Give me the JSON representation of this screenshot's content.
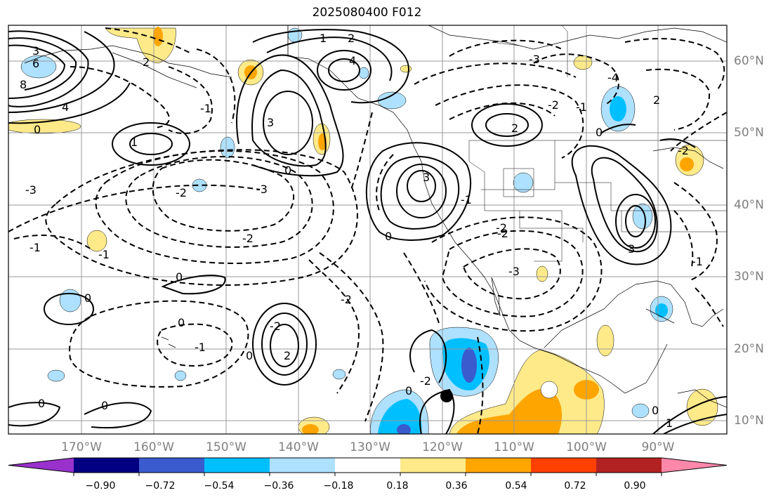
{
  "title": "2025080400 F012",
  "map": {
    "projection": "plate-carree",
    "lon_range": [
      -178,
      -78
    ],
    "lat_range": [
      7,
      64
    ],
    "marker": {
      "name": "black-dot",
      "lon": -119,
      "lat": 13.5
    },
    "contour_style": {
      "positive": "solid",
      "negative": "dashed",
      "color": "#000000"
    },
    "contour_labels": [
      "3",
      "6",
      "8",
      "4",
      "2",
      "1",
      "0",
      "-1",
      "-2",
      "-3",
      "1",
      "2",
      "4",
      "-2",
      "-3",
      "-4",
      "0",
      "2",
      "-1",
      "3",
      "0",
      "-2",
      "3",
      "-1",
      "-2",
      "-3",
      "0",
      "2",
      "-1",
      "-3",
      "-2",
      "0",
      "0",
      "-2",
      "0",
      "-1",
      "2",
      "-2",
      "-1",
      "3",
      "0",
      "0",
      "0",
      "-1",
      "0",
      "1",
      "-2",
      "0",
      "-2"
    ]
  },
  "lat_labels": [
    "60°N",
    "50°N",
    "40°N",
    "30°N",
    "20°N",
    "10°N"
  ],
  "lon_labels": [
    "170°W",
    "160°W",
    "150°W",
    "140°W",
    "130°W",
    "120°W",
    "110°W",
    "100°W",
    "90°W"
  ],
  "colorbar": {
    "bounds": [
      -1.08,
      -0.9,
      -0.72,
      -0.54,
      -0.36,
      -0.18,
      0.18,
      0.36,
      0.54,
      0.72,
      0.9,
      1.08
    ],
    "tick_labels": [
      "−0.90",
      "−0.72",
      "−0.54",
      "−0.36",
      "−0.18",
      "0.18",
      "0.36",
      "0.54",
      "0.72",
      "0.90"
    ],
    "colors": [
      "#9932cc",
      "#000080",
      "#3a5bcd",
      "#00bfff",
      "#aee1ff",
      "#ffffff",
      "#ffea8a",
      "#ffa500",
      "#ff4000",
      "#b22222",
      "#ff88aa"
    ],
    "extend": "both"
  }
}
